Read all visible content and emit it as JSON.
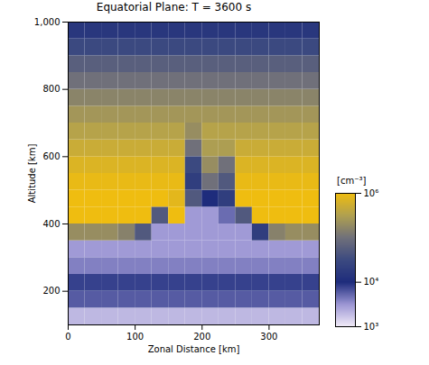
{
  "chart_data": {
    "type": "heatmap",
    "title": "Equatorial Plane: T =  3600 s",
    "x_label": "Zonal Distance [km]",
    "y_label": "Altitude [km]",
    "xlim": [
      0,
      375
    ],
    "ylim": [
      100,
      1000
    ],
    "xticks": [
      0,
      100,
      200,
      300
    ],
    "yticks": [
      200,
      400,
      600,
      800,
      1000
    ],
    "x_edges": [
      0,
      25,
      50,
      75,
      100,
      125,
      150,
      175,
      200,
      225,
      250,
      275,
      300,
      325,
      350,
      375
    ],
    "y_edges": [
      100,
      150,
      200,
      250,
      300,
      350,
      400,
      450,
      500,
      550,
      600,
      650,
      700,
      750,
      800,
      850,
      900,
      950,
      1000
    ],
    "density": [
      [
        2000,
        2000,
        2000,
        2000,
        2000,
        2000,
        2000,
        2000,
        2000,
        2000,
        2000,
        2000,
        2000,
        2000,
        2000
      ],
      [
        6000,
        6000,
        6000,
        6000,
        6000,
        6000,
        6000,
        6000,
        6000,
        6000,
        6000,
        6000,
        6000,
        6000,
        6000
      ],
      [
        8000,
        8000,
        8000,
        8000,
        8000,
        8000,
        8000,
        8000,
        8000,
        8000,
        8000,
        8000,
        8000,
        8000,
        8000
      ],
      [
        4000,
        4000,
        4000,
        4000,
        4000,
        4000,
        4000,
        4000,
        4000,
        4000,
        4000,
        4000,
        4000,
        4000,
        4000
      ],
      [
        3000,
        3000,
        3000,
        3000,
        3000,
        3000,
        3000,
        3000,
        3000,
        3000,
        3000,
        3000,
        3000,
        3000,
        3000
      ],
      [
        200000,
        200000,
        200000,
        150000,
        50000,
        3000,
        3000,
        3000,
        3000,
        3000,
        3000,
        20000,
        150000,
        200000,
        200000
      ],
      [
        1000000,
        1000000,
        1000000,
        1000000,
        1000000,
        50000,
        1000000,
        3000,
        3000,
        5000,
        50000,
        1000000,
        1000000,
        1000000,
        1000000
      ],
      [
        1000000,
        1000000,
        1000000,
        1000000,
        1000000,
        1000000,
        800000,
        50000,
        10000,
        20000,
        1000000,
        1000000,
        1000000,
        1000000,
        1000000
      ],
      [
        900000,
        900000,
        900000,
        900000,
        900000,
        900000,
        900000,
        20000,
        100000,
        50000,
        900000,
        900000,
        900000,
        900000,
        900000
      ],
      [
        700000,
        700000,
        700000,
        700000,
        700000,
        700000,
        700000,
        30000,
        200000,
        100000,
        700000,
        700000,
        700000,
        700000,
        700000
      ],
      [
        500000,
        500000,
        500000,
        500000,
        500000,
        500000,
        500000,
        100000,
        300000,
        300000,
        500000,
        500000,
        500000,
        500000,
        500000
      ],
      [
        350000,
        350000,
        350000,
        350000,
        350000,
        350000,
        350000,
        200000,
        350000,
        350000,
        350000,
        350000,
        350000,
        350000,
        350000
      ],
      [
        250000,
        250000,
        250000,
        250000,
        250000,
        250000,
        250000,
        250000,
        250000,
        250000,
        250000,
        250000,
        250000,
        250000,
        250000
      ],
      [
        160000,
        160000,
        160000,
        160000,
        160000,
        160000,
        160000,
        160000,
        160000,
        160000,
        160000,
        160000,
        160000,
        160000,
        160000
      ],
      [
        100000,
        100000,
        100000,
        100000,
        100000,
        100000,
        100000,
        100000,
        100000,
        100000,
        100000,
        100000,
        100000,
        100000,
        100000
      ],
      [
        60000,
        60000,
        60000,
        60000,
        60000,
        60000,
        60000,
        60000,
        60000,
        60000,
        60000,
        60000,
        60000,
        60000,
        60000
      ],
      [
        30000,
        30000,
        30000,
        30000,
        30000,
        30000,
        30000,
        30000,
        30000,
        30000,
        30000,
        30000,
        30000,
        30000,
        30000
      ],
      [
        15000,
        15000,
        15000,
        15000,
        15000,
        15000,
        15000,
        15000,
        15000,
        15000,
        15000,
        15000,
        15000,
        15000,
        15000
      ]
    ],
    "colorbar": {
      "label": "[cm⁻³]",
      "range": [
        1000,
        1000000
      ],
      "ticks": [
        {
          "value": 1000,
          "label": "10³"
        },
        {
          "value": 10000,
          "label": "10⁴"
        },
        {
          "value": 1000000,
          "label": "10⁶"
        }
      ],
      "log": true
    }
  }
}
